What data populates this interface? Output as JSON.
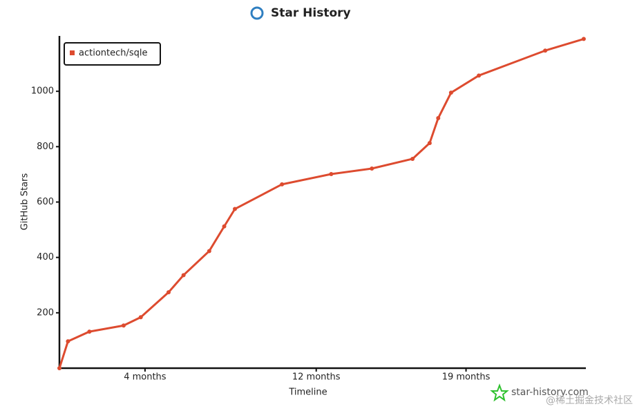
{
  "chart_data": {
    "type": "line",
    "title": "Star History",
    "x_label": "Timeline",
    "y_label": "GitHub Stars",
    "x": [
      0,
      0.4,
      1.4,
      3.0,
      3.8,
      5.1,
      5.8,
      7.0,
      7.7,
      8.2,
      10.4,
      12.7,
      14.6,
      16.5,
      17.3,
      17.7,
      18.3,
      19.6,
      22.7,
      24.5
    ],
    "series": [
      {
        "name": "actiontech/sqle",
        "color": "#dd4b2f",
        "values": [
          0,
          97,
          132,
          154,
          184,
          274,
          336,
          423,
          512,
          575,
          664,
          701,
          721,
          756,
          813,
          903,
          995,
          1057,
          1147,
          1189
        ]
      }
    ],
    "xlim": [
      0,
      24.6
    ],
    "xticks": [
      {
        "value": 4,
        "label": "4 months"
      },
      {
        "value": 12,
        "label": "12 months"
      },
      {
        "value": 19,
        "label": "19 months"
      }
    ],
    "ylim": [
      0,
      1200
    ],
    "yticks": [
      200,
      400,
      600,
      800,
      1000
    ],
    "legend": "top-left",
    "watermark": "star-history.com",
    "site_watermark": "@稀土掘金技术社区"
  }
}
